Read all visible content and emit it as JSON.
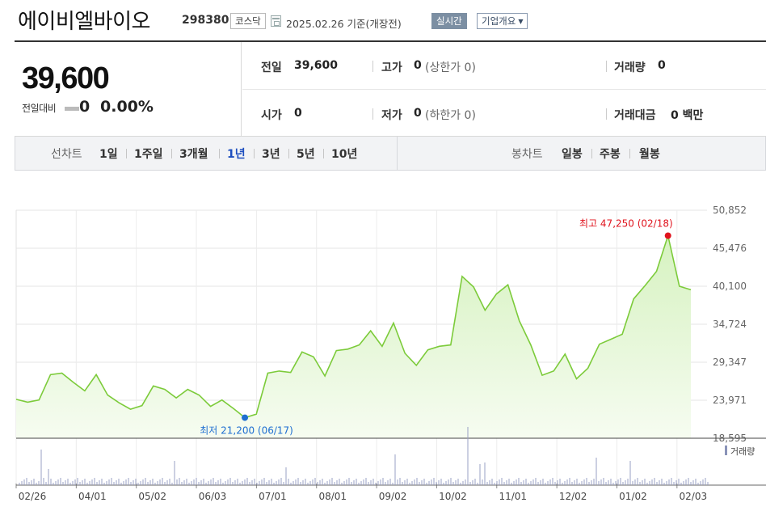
{
  "header": {
    "company_name": "에이비엘바이오",
    "stock_code": "298380",
    "market": "코스닥",
    "date_text": "2025.02.26  기준(개장전)",
    "realtime_button": "실시간",
    "overview_button": "기업개요"
  },
  "summary": {
    "price": "39,600",
    "change_label": "전일대비",
    "change_value": "0",
    "change_percent": "0.00%",
    "prev_close_label": "전일",
    "prev_close": "39,600",
    "high_label": "고가",
    "high": "0",
    "upper_limit_text": "(상한가 0)",
    "volume_label": "거래량",
    "volume": "0",
    "open_label": "시가",
    "open": "0",
    "low_label": "저가",
    "low": "0",
    "lower_limit_text": "(하한가 0)",
    "value_label": "거래대금",
    "value": "0 백만"
  },
  "tabs": {
    "line_chart_label": "선차트",
    "periods": [
      "1일",
      "1주일",
      "3개월",
      "1년",
      "3년",
      "5년",
      "10년"
    ],
    "active_period": "1년",
    "candle_chart_label": "봉차트",
    "candle_periods": [
      "일봉",
      "주봉",
      "월봉"
    ]
  },
  "chart_data": {
    "type": "area",
    "y_ticks": [
      "50,852",
      "45,476",
      "40,100",
      "34,724",
      "29,347",
      "23,971",
      "18,595"
    ],
    "ylim": [
      18595,
      50852
    ],
    "x_ticks": [
      "02/26",
      "04/01",
      "05/02",
      "06/03",
      "07/01",
      "08/01",
      "09/02",
      "10/02",
      "11/01",
      "12/02",
      "01/02",
      "02/03"
    ],
    "max_annotation": "최고 47,250 (02/18)",
    "min_annotation": "최저 21,200 (06/17)",
    "volume_legend": "거래량",
    "line_color": "#7ccb3a",
    "fill_color": "#d6f2c0",
    "max_color": "#e0141e",
    "min_color": "#1f6fd1",
    "values": [
      24100,
      23700,
      24000,
      27600,
      27800,
      26500,
      25300,
      27600,
      24700,
      23600,
      22700,
      23200,
      26000,
      25500,
      24300,
      25500,
      24700,
      23100,
      24000,
      22800,
      21500,
      22000,
      27800,
      28100,
      27900,
      30800,
      30100,
      27400,
      31000,
      31200,
      31800,
      33800,
      31600,
      34900,
      30600,
      28900,
      31100,
      31600,
      31800,
      41500,
      40000,
      36700,
      39000,
      40300,
      35200,
      31800,
      27500,
      28100,
      30500,
      27000,
      28500,
      31900,
      32600,
      33300,
      38300,
      40200,
      42200,
      47250,
      40100,
      39600
    ]
  }
}
